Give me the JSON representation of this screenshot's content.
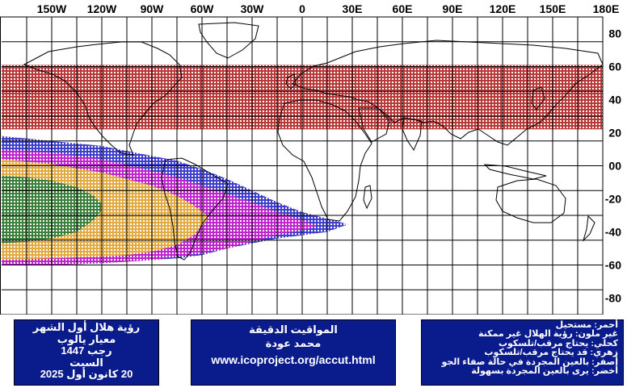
{
  "map": {
    "projection": "equirectangular",
    "lon_range": [
      -180,
      180
    ],
    "lat_range": [
      -90,
      90
    ],
    "grid_step_deg": 15,
    "lon_labels": [
      "150W",
      "120W",
      "90W",
      "60W",
      "30W",
      "0",
      "30E",
      "60E",
      "90E",
      "120E",
      "150E",
      "180E"
    ],
    "lon_label_values": [
      -150,
      -120,
      -90,
      -60,
      -30,
      0,
      30,
      60,
      90,
      120,
      150,
      180
    ],
    "lat_labels": [
      "80",
      "60",
      "40",
      "20",
      "00",
      "-20",
      "-40",
      "-60",
      "-80"
    ],
    "lat_label_values": [
      80,
      60,
      40,
      20,
      0,
      -20,
      -40,
      -60,
      -80
    ],
    "zones": {
      "red": {
        "color": "#b22222",
        "lon_range": [
          -180,
          180
        ],
        "lat_range": [
          22,
          61
        ]
      },
      "blue": {
        "color": "#2b2bc8",
        "lon_range": [
          -180,
          30
        ],
        "boundary_north": [
          [
            -180,
            18
          ],
          [
            -150,
            15
          ],
          [
            -120,
            12
          ],
          [
            -90,
            6
          ],
          [
            -75,
            3
          ],
          [
            -60,
            -2
          ],
          [
            -45,
            -8
          ],
          [
            -30,
            -15
          ],
          [
            -15,
            -22
          ],
          [
            0,
            -28
          ],
          [
            15,
            -32
          ],
          [
            26,
            -35
          ]
        ],
        "boundary_south": [
          [
            -180,
            -60
          ],
          [
            -150,
            -60
          ],
          [
            -120,
            -59
          ],
          [
            -90,
            -57
          ],
          [
            -75,
            -56
          ],
          [
            -60,
            -54
          ],
          [
            -45,
            -50
          ],
          [
            -30,
            -47
          ],
          [
            -15,
            -44
          ],
          [
            0,
            -42
          ],
          [
            15,
            -40
          ],
          [
            26,
            -36
          ]
        ]
      },
      "magenta": {
        "color": "#cc22cc",
        "lon_range": [
          -180,
          10
        ],
        "boundary_north": [
          [
            -180,
            10
          ],
          [
            -150,
            8
          ],
          [
            -120,
            4
          ],
          [
            -90,
            -3
          ],
          [
            -75,
            -7
          ],
          [
            -60,
            -12
          ],
          [
            -45,
            -17
          ],
          [
            -30,
            -22
          ],
          [
            -15,
            -28
          ],
          [
            0,
            -33
          ],
          [
            8,
            -36
          ]
        ],
        "boundary_south": [
          [
            -180,
            -60
          ],
          [
            -150,
            -60
          ],
          [
            -120,
            -59
          ],
          [
            -90,
            -57
          ],
          [
            -75,
            -55
          ],
          [
            -60,
            -53
          ],
          [
            -45,
            -50
          ],
          [
            -30,
            -46
          ],
          [
            -15,
            -42
          ],
          [
            0,
            -39
          ],
          [
            8,
            -37
          ]
        ]
      },
      "yellow": {
        "color": "#e6b832",
        "lon_range": [
          -180,
          -55
        ],
        "boundary_north": [
          [
            -180,
            4
          ],
          [
            -150,
            1
          ],
          [
            -120,
            -4
          ],
          [
            -105,
            -8
          ],
          [
            -90,
            -12
          ],
          [
            -75,
            -18
          ],
          [
            -65,
            -24
          ],
          [
            -57,
            -30
          ]
        ],
        "boundary_south": [
          [
            -180,
            -57
          ],
          [
            -150,
            -56
          ],
          [
            -120,
            -55
          ],
          [
            -105,
            -54
          ],
          [
            -90,
            -52
          ],
          [
            -75,
            -48
          ],
          [
            -65,
            -42
          ],
          [
            -57,
            -33
          ]
        ]
      },
      "green": {
        "color": "#2a7a3a",
        "lon_range": [
          -180,
          -120
        ],
        "boundary_north": [
          [
            -180,
            -6
          ],
          [
            -165,
            -7
          ],
          [
            -150,
            -9
          ],
          [
            -135,
            -13
          ],
          [
            -125,
            -18
          ],
          [
            -120,
            -23
          ]
        ],
        "boundary_south": [
          [
            -180,
            -47
          ],
          [
            -165,
            -46
          ],
          [
            -150,
            -44
          ],
          [
            -135,
            -40
          ],
          [
            -125,
            -33
          ],
          [
            -120,
            -27
          ]
        ]
      }
    }
  },
  "left_panel": {
    "line1": "رؤية هلال أول الشهر",
    "line2": "معيار يالوب",
    "line3": "رجب 1447",
    "line4": "السبت",
    "line5": "20 كانون أول 2025"
  },
  "mid_panel": {
    "line1": "المواقيت الدقيقة",
    "line2": "محمد عودة",
    "url": "www.icoproject.org/accut.html"
  },
  "legend": {
    "red": "أحمر: مستحيل",
    "none": "غير ملون: رؤية الهلال غير ممكنة",
    "blue": "كحلي: يحتاج مرقب/تلسكوب",
    "magenta": "زهري: قد يحتاج مرقب/تلسكوب",
    "yellow": "أصفر: بالعين المجردة في حالة صفاء الجو",
    "green": "أخضر: يرى بالعين المجردة بسهولة"
  }
}
